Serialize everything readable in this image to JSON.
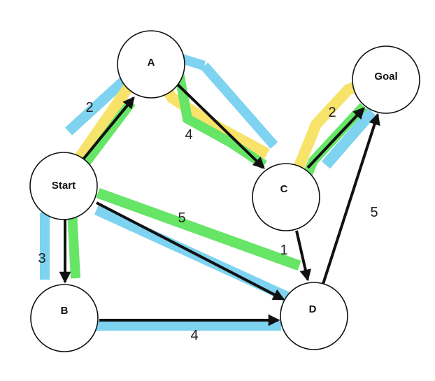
{
  "colors": {
    "blue_highlight": "#7dd3f0",
    "green_highlight": "#66e566",
    "yellow_highlight": "#f8e36a",
    "edge": "#111111",
    "node_fill": "#ffffff"
  },
  "nodes": {
    "start": "Start",
    "a": "A",
    "b": "B",
    "c": "C",
    "d": "D",
    "goal": "Goal"
  },
  "weights": {
    "start_a": "2",
    "a_c": "4",
    "c_goal": "2",
    "start_b": "3",
    "start_d": "5",
    "b_d": "4",
    "c_d": "1",
    "d_goal": "5"
  }
}
